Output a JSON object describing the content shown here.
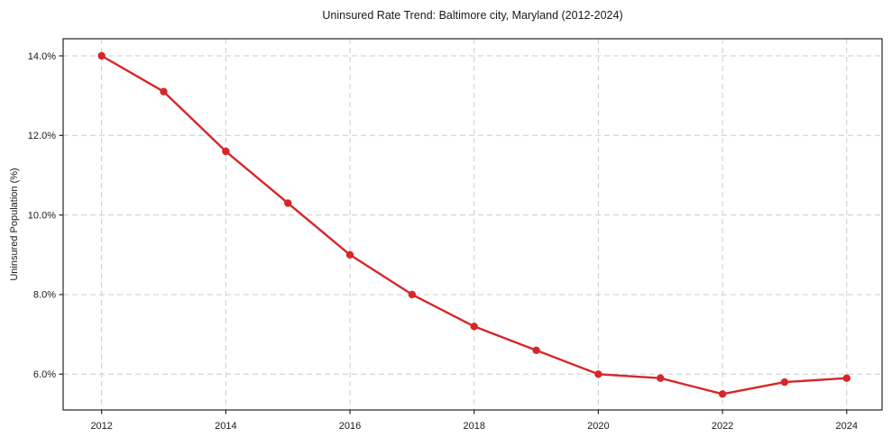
{
  "page": {
    "background": "#ffffff",
    "text_color": "#1a1a1a"
  },
  "chart_data": {
    "type": "line",
    "title": "Uninsured Rate Trend: Baltimore city, Maryland (2012-2024)",
    "xlabel": "",
    "ylabel": "Uninsured Population (%)",
    "x": [
      2012,
      2013,
      2014,
      2015,
      2016,
      2017,
      2018,
      2019,
      2020,
      2021,
      2022,
      2023,
      2024
    ],
    "series": [
      {
        "name": "Uninsured Rate",
        "color": "#d62728",
        "values": [
          14.0,
          13.1,
          11.6,
          10.3,
          9.0,
          8.0,
          7.2,
          6.6,
          6.0,
          5.9,
          5.5,
          5.8,
          5.9
        ]
      }
    ],
    "xlim": [
      2011.38,
      2024.57
    ],
    "ylim": [
      5.1,
      14.43
    ],
    "x_ticks": [
      2012,
      2014,
      2016,
      2018,
      2020,
      2022,
      2024
    ],
    "x_tick_labels": [
      "2012",
      "2014",
      "2016",
      "2018",
      "2020",
      "2022",
      "2024"
    ],
    "y_ticks": [
      6.0,
      8.0,
      10.0,
      12.0,
      14.0
    ],
    "y_tick_labels": [
      "6.0%",
      "8.0%",
      "10.0%",
      "12.0%",
      "14.0%"
    ],
    "grid": true,
    "grid_style": "dashed",
    "grid_color": "#cccccc",
    "axis_color": "#262626",
    "marker": "circle",
    "legend": "none"
  }
}
